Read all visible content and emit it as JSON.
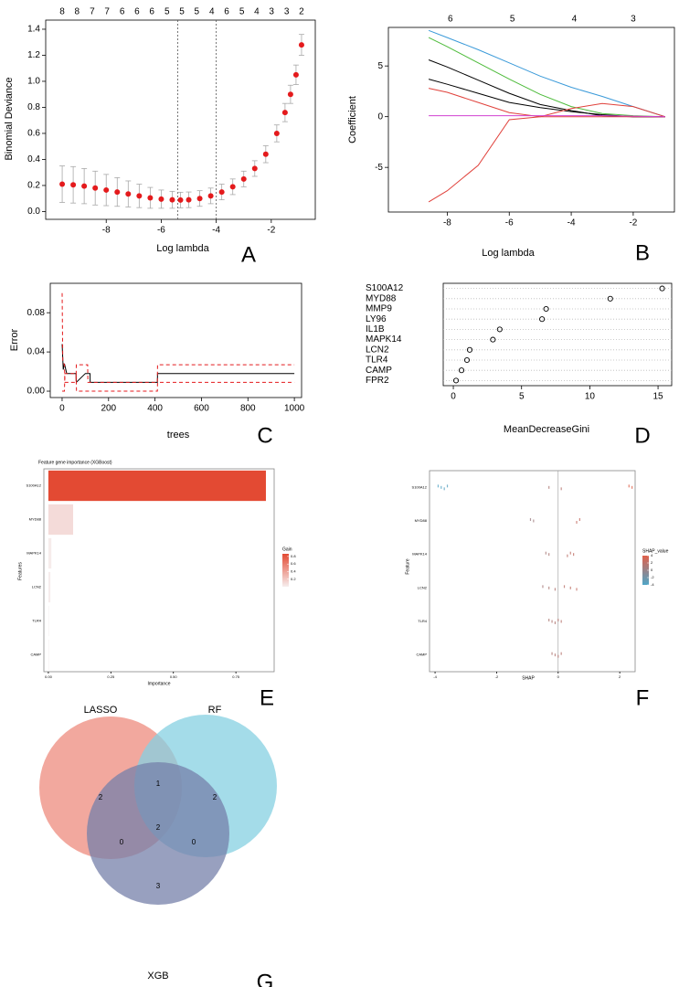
{
  "chart_data": [
    {
      "type": "errorbar",
      "panel": "A",
      "xlabel": "Log lambda",
      "ylabel": "Binomial Deviance",
      "x": [
        -9.6,
        -9.2,
        -8.8,
        -8.4,
        -8,
        -7.6,
        -7.2,
        -6.8,
        -6.4,
        -6,
        -5.6,
        -5.3,
        -5,
        -4.6,
        -4.2,
        -3.8,
        -3.4,
        -3,
        -2.6,
        -2.2,
        -1.8,
        -1.5,
        -1.3,
        -1.1,
        -0.9
      ],
      "values": [
        0.21,
        0.205,
        0.195,
        0.18,
        0.165,
        0.15,
        0.135,
        0.12,
        0.105,
        0.095,
        0.09,
        0.088,
        0.09,
        0.1,
        0.12,
        0.15,
        0.19,
        0.25,
        0.33,
        0.44,
        0.6,
        0.76,
        0.9,
        1.05,
        1.28
      ],
      "errors": [
        0.14,
        0.14,
        0.135,
        0.13,
        0.12,
        0.11,
        0.1,
        0.09,
        0.08,
        0.07,
        0.065,
        0.06,
        0.06,
        0.06,
        0.06,
        0.06,
        0.06,
        0.06,
        0.06,
        0.065,
        0.065,
        0.07,
        0.07,
        0.075,
        0.08
      ],
      "color": "#e41a1c",
      "error_color": "#a8a8a8",
      "xlim": [
        -10.2,
        -0.4
      ],
      "ylim": [
        -0.06,
        1.47
      ],
      "xticks": [
        -8,
        -6,
        -4,
        -2
      ],
      "yticks": [
        {
          "value": 0,
          "label": "0.0"
        },
        0.2,
        0.4,
        0.6,
        0.8,
        {
          "value": 1,
          "label": "1.0"
        },
        1.2,
        1.4
      ],
      "top_labels": [
        {
          "value": -9.6,
          "label": "8"
        },
        {
          "value": -9.06,
          "label": "8"
        },
        {
          "value": -8.51,
          "label": "7"
        },
        {
          "value": -7.97,
          "label": "7"
        },
        {
          "value": -7.42,
          "label": "6"
        },
        {
          "value": -6.88,
          "label": "6"
        },
        {
          "value": -6.34,
          "label": "6"
        },
        {
          "value": -5.79,
          "label": "5"
        },
        {
          "value": -5.25,
          "label": "5"
        },
        {
          "value": -4.71,
          "label": "5"
        },
        {
          "value": -4.16,
          "label": "4"
        },
        {
          "value": -3.62,
          "label": "6"
        },
        {
          "value": -3.07,
          "label": "5"
        },
        {
          "value": -2.53,
          "label": "4"
        },
        {
          "value": -1.99,
          "label": "3"
        },
        {
          "value": -1.44,
          "label": "3"
        },
        {
          "value": -0.9,
          "label": "2"
        }
      ],
      "vlines": [
        -5.4,
        -4.0
      ]
    },
    {
      "type": "line",
      "panel": "B",
      "xlabel": "Log lambda",
      "ylabel": "Coefficient",
      "x": [
        -8.6,
        -8,
        -7,
        -6,
        -5,
        -4,
        -3,
        -2,
        -0.97
      ],
      "series": [
        {
          "color": "#3a9ad9",
          "values": [
            8.5,
            7.8,
            6.6,
            5.3,
            4.0,
            2.9,
            2.0,
            1.0,
            0
          ]
        },
        {
          "color": "#4dbb3a",
          "values": [
            7.8,
            6.9,
            5.3,
            3.7,
            2.2,
            1.0,
            0.3,
            0.1,
            0
          ]
        },
        {
          "color": "#000000",
          "values": [
            5.6,
            4.9,
            3.6,
            2.3,
            1.2,
            0.6,
            0.1,
            0,
            0
          ]
        },
        {
          "color": "#000000",
          "values": [
            3.7,
            3.2,
            2.3,
            1.4,
            0.9,
            0.5,
            0.2,
            0,
            0
          ]
        },
        {
          "color": "#e0403a",
          "values": [
            2.8,
            2.4,
            1.4,
            0.4,
            0,
            0.8,
            1.3,
            1.0,
            0
          ]
        },
        {
          "color": "#e0403a",
          "values": [
            -8.4,
            -7.3,
            -4.8,
            -0.3,
            0,
            0,
            0,
            0,
            0
          ]
        },
        {
          "color": "#d040d0",
          "values": [
            0.1,
            0.1,
            0.1,
            0.1,
            0.1,
            0.1,
            0.1,
            0.05,
            0
          ]
        }
      ],
      "xlim": [
        -9.9,
        -0.67
      ],
      "ylim": [
        -9.4,
        8.8
      ],
      "xticks": [
        -8,
        -6,
        -4,
        -2
      ],
      "yticks": [
        -5,
        0,
        5
      ],
      "top_labels": [
        {
          "value": -7.9,
          "label": "6"
        },
        {
          "value": -5.9,
          "label": "5"
        },
        {
          "value": -3.9,
          "label": "4"
        },
        {
          "value": -2,
          "label": "3"
        }
      ]
    },
    {
      "type": "line",
      "panel": "C",
      "xlabel": "trees",
      "ylabel": "Error",
      "series": [
        {
          "color": "#000000",
          "x": [
            0,
            5,
            10,
            20,
            60,
            61,
            100,
            120,
            121,
            410,
            411,
            1000
          ],
          "values": [
            0.048,
            0.022,
            0.028,
            0.018,
            0.018,
            0.009,
            0.018,
            0.018,
            0.009,
            0.009,
            0.018,
            0.018
          ]
        },
        {
          "color": "#e41a1c",
          "dashed": true,
          "x": [
            0,
            3,
            10,
            12,
            60,
            61,
            110,
            111,
            410,
            411,
            1000
          ],
          "values": [
            0.1,
            0.03,
            0.027,
            0.009,
            0.009,
            0.027,
            0.027,
            0.009,
            0.009,
            0.027,
            0.027
          ]
        },
        {
          "color": "#e41a1c",
          "dashed": true,
          "x": [
            0,
            10,
            12,
            60,
            62,
            410,
            411,
            1000
          ],
          "values": [
            0,
            0,
            0.018,
            0.018,
            0,
            0,
            0.009,
            0.009
          ]
        }
      ],
      "xlim": [
        -51,
        1031
      ],
      "ylim": [
        -0.0065,
        0.11
      ],
      "xticks": [
        0,
        200,
        400,
        600,
        800,
        1000
      ],
      "yticks": [
        {
          "value": 0,
          "label": "0.00"
        },
        0.04,
        0.08
      ]
    },
    {
      "type": "dot",
      "panel": "D",
      "xlabel": "MeanDecreaseGini",
      "categories": [
        "S100A12",
        "MYD88",
        "MMP9",
        "LY96",
        "IL1B",
        "MAPK14",
        "LCN2",
        "TLR4",
        "CAMP",
        "FPR2"
      ],
      "values": [
        15.3,
        11.5,
        6.8,
        6.5,
        3.4,
        2.9,
        1.2,
        1.0,
        0.6,
        0.2
      ],
      "xlim": [
        -0.74,
        16
      ],
      "xticks": [
        0,
        5,
        10,
        15
      ]
    },
    {
      "type": "bar",
      "panel": "E",
      "title": "Feature gene importance (XGBoost)",
      "xlabel": "Importance",
      "ylabel": "Features",
      "categories": [
        "S100A12",
        "MYD88",
        "MAPK14",
        "LCN2",
        "TLR4",
        "CAMP"
      ],
      "values": [
        0.87,
        0.099,
        0.012,
        0.008,
        0.002,
        0.001
      ],
      "xlim": [
        -0.018,
        0.903
      ],
      "xticks": [
        {
          "value": 0,
          "label": "0.00"
        },
        0.25,
        {
          "value": 0.5,
          "label": "0.50"
        },
        0.75
      ],
      "legend_title": "Gain",
      "color_scale": {
        "low": "#f6eeee",
        "high": "#e34a33",
        "lim": [
          0,
          0.87
        ],
        "ticks": [
          0.2,
          0.4,
          0.6,
          0.8
        ]
      }
    },
    {
      "type": "beeswarm",
      "panel": "F",
      "xlabel": "SHAP",
      "ylabel": "Feature",
      "categories": [
        "S100A12",
        "MYD88",
        "MAPK14",
        "LCN2",
        "TLR4",
        "CAMP"
      ],
      "values": [
        [
          -3.9,
          -3.8,
          -3.7,
          -3.6,
          -0.3,
          0.1,
          2.3,
          2.4
        ],
        [
          -0.9,
          -0.8,
          0.6,
          0.7
        ],
        [
          -0.4,
          -0.3,
          0.3,
          0.4,
          0.5
        ],
        [
          -0.5,
          -0.3,
          -0.1,
          0.2,
          0.4,
          0.6
        ],
        [
          -0.3,
          -0.2,
          -0.1,
          0,
          0.1
        ],
        [
          -0.2,
          -0.1,
          0,
          0.1
        ]
      ],
      "xlim": [
        -4.18,
        2.5
      ],
      "xticks": [
        -4,
        -2,
        0,
        2
      ],
      "legend_title": "SHAP_value",
      "color_scale": {
        "low": "#4fa6c8",
        "high": "#e0604a",
        "lim": [
          -4,
          4
        ],
        "ticks": [
          4,
          2,
          0,
          -2,
          -4
        ]
      }
    },
    {
      "type": "venn",
      "panel": "G",
      "sets": [
        "LASSO",
        "RF",
        "XGB"
      ],
      "colors": [
        "#ee8b7e",
        "#86d0e2",
        "#7580aa"
      ],
      "values": [
        2,
        2,
        3,
        1,
        0,
        0,
        2
      ]
    }
  ]
}
